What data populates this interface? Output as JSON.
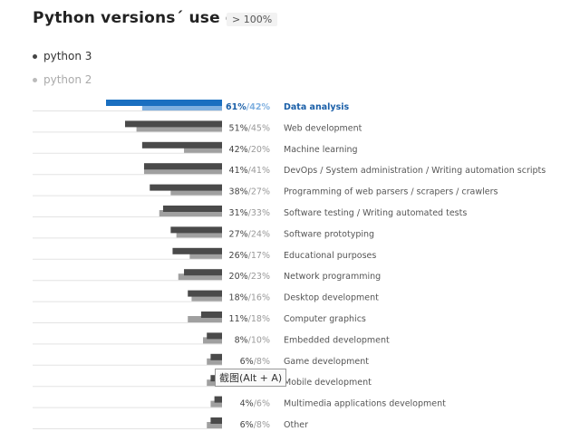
{
  "header": {
    "title": "Python versions´  use cases",
    "badge": "> 100%"
  },
  "legend": {
    "python3": "python 3",
    "python2": "python 2"
  },
  "tooltip": "截图(Alt + A)",
  "colors": {
    "python3": "#4a4a4a",
    "python2": "#a0a0a0",
    "highlight3": "#1a6fc0",
    "highlight2": "#7fb0e0",
    "label": "#555555",
    "highlightLabel": "#1a5fa8"
  },
  "chart_data": {
    "type": "bar",
    "orientation": "horizontal",
    "categories": [
      "Data analysis",
      "Web development",
      "Machine learning",
      "DevOps / System administration / Writing automation scripts",
      "Programming of web parsers / scrapers / crawlers",
      "Software testing / Writing automated tests",
      "Software prototyping",
      "Educational purposes",
      "Network programming",
      "Desktop development",
      "Computer graphics",
      "Embedded development",
      "Game development",
      "Mobile development",
      "Multimedia applications development",
      "Other"
    ],
    "value_labels": [
      [
        "61%",
        "42%"
      ],
      [
        "51%",
        "45%"
      ],
      [
        "42%",
        "20%"
      ],
      [
        "41%",
        "41%"
      ],
      [
        "38%",
        "27%"
      ],
      [
        "31%",
        "33%"
      ],
      [
        "27%",
        "24%"
      ],
      [
        "26%",
        "17%"
      ],
      [
        "20%",
        "23%"
      ],
      [
        "18%",
        "16%"
      ],
      [
        "11%",
        "18%"
      ],
      [
        "8%",
        "10%"
      ],
      [
        "6%",
        "8%"
      ],
      [
        "",
        ""
      ],
      [
        "4%",
        "6%"
      ],
      [
        "6%",
        "8%"
      ]
    ],
    "series": [
      {
        "name": "python 3",
        "values": [
          61,
          51,
          42,
          41,
          38,
          31,
          27,
          26,
          20,
          18,
          11,
          8,
          6,
          6,
          4,
          6
        ]
      },
      {
        "name": "python 2",
        "values": [
          42,
          45,
          20,
          41,
          27,
          33,
          24,
          17,
          23,
          16,
          18,
          10,
          8,
          8,
          6,
          8
        ]
      }
    ],
    "highlight_index": 0,
    "xlim": [
      0,
      61
    ],
    "grid": false,
    "legend_position": "top-left"
  }
}
